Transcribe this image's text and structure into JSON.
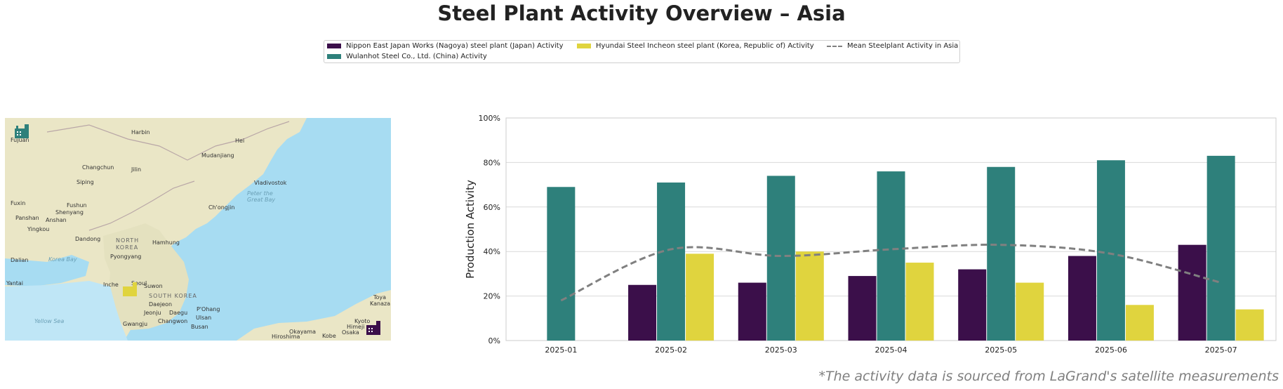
{
  "title": "Steel Plant Activity Overview – Asia",
  "footnote": "*The activity data is sourced from LaGrand's satellite measurements",
  "legend": {
    "items": [
      {
        "label": "Nippon East Japan Works (Nagoya) steel plant (Japan) Activity",
        "color": "#3b0f4a"
      },
      {
        "label": "Wulanhot Steel Co., Ltd. (China) Activity",
        "color": "#2e807b"
      },
      {
        "label": "Hyundai Steel Incheon steel plant (Korea, Republic of) Activity",
        "color": "#e0d43e"
      },
      {
        "label": "Mean Steelplant Activity in Asia",
        "color": "#808080"
      }
    ]
  },
  "map": {
    "labels": {
      "harbin": "Harbin",
      "changchun": "Changchun",
      "jilin": "Jilin",
      "siping": "Siping",
      "fuxin": "Fuxin",
      "fushun": "Fushun",
      "shenyang": "Shenyang",
      "panshan": "Panshan",
      "anshan": "Anshan",
      "yingkou": "Yingkou",
      "dandong": "Dandong",
      "dalian": "Dalian",
      "yantai": "Yantai",
      "pyongyang": "Pyongyang",
      "hamhung": "Hamhung",
      "north_korea_1": "NORTH",
      "north_korea_2": "KOREA",
      "chongjin": "Ch'ongjin",
      "vladivostok": "Vladivostok",
      "mudanjiang": "Mudanjiang",
      "hei": "Hei",
      "incheon": "Inche",
      "seoul": "Seoul",
      "suwon": "Suwon",
      "south_korea": "SOUTH KOREA",
      "daejeon": "Daejeon",
      "jeonju": "Jeonju",
      "daegu": "Daegu",
      "pohang": "P'Ohang",
      "ulsan": "Ulsan",
      "gwangju": "Gwangju",
      "changwon": "Changwon",
      "busan": "Busan",
      "hiroshima": "Hiroshima",
      "okayama": "Okayama",
      "kobe": "Kobe",
      "osaka": "Osaka",
      "kyoto": "Kyoto",
      "himeji": "Himeji",
      "toyama": "Toya",
      "kanazawa": "Kanaza",
      "korea_bay": "Korea Bay",
      "yellow_sea": "Yellow Sea",
      "peter_great_bay_1": "Peter the",
      "peter_great_bay_2": "Great Bay",
      "fujuan": "Fujuan"
    },
    "markers": [
      {
        "name": "wulanhot-plant-marker",
        "color": "#2e807b"
      },
      {
        "name": "incheon-plant-marker",
        "color": "#e0d43e"
      },
      {
        "name": "nagoya-plant-marker",
        "color": "#3b0f4a"
      }
    ]
  },
  "chart_data": {
    "type": "bar",
    "categories": [
      "2025-01",
      "2025-02",
      "2025-03",
      "2025-04",
      "2025-05",
      "2025-06",
      "2025-07"
    ],
    "series": [
      {
        "name": "Nippon East Japan Works (Nagoya) steel plant (Japan) Activity",
        "color": "#3b0f4a",
        "values": [
          null,
          25,
          26,
          29,
          32,
          38,
          43
        ]
      },
      {
        "name": "Wulanhot Steel Co., Ltd. (China) Activity",
        "color": "#2e807b",
        "values": [
          69,
          71,
          74,
          76,
          78,
          81,
          83
        ]
      },
      {
        "name": "Hyundai Steel Incheon steel plant (Korea, Republic of) Activity",
        "color": "#e0d43e",
        "values": [
          null,
          39,
          40,
          35,
          26,
          16,
          14
        ]
      }
    ],
    "line": {
      "name": "Mean Steelplant Activity in Asia",
      "color": "#808080",
      "style": "dashed",
      "values": [
        18,
        41,
        38,
        41,
        43,
        39,
        26
      ]
    },
    "xlabel": "",
    "ylabel": "Production Activity",
    "ylim": [
      0,
      100
    ],
    "yticks": [
      "0%",
      "20%",
      "40%",
      "60%",
      "80%",
      "100%"
    ],
    "grid": true
  }
}
